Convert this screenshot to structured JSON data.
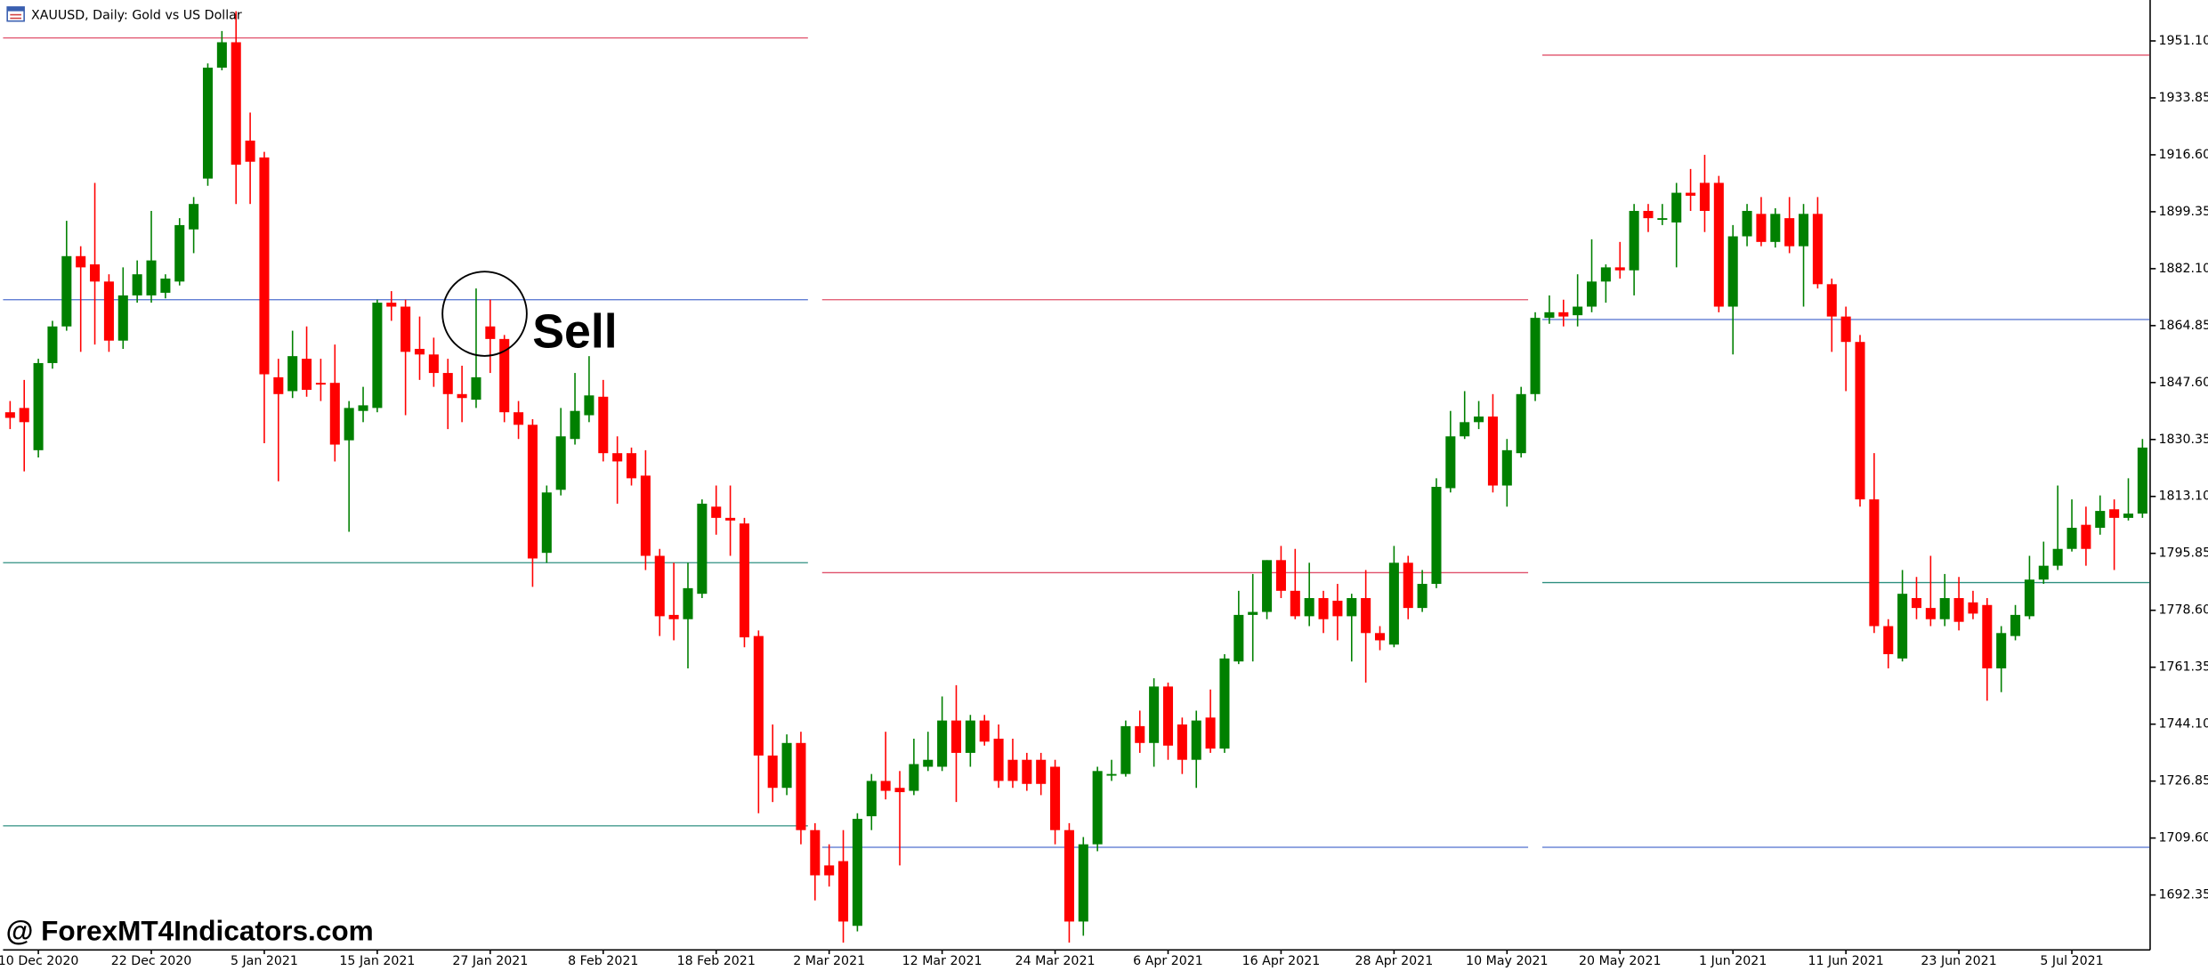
{
  "chart_data": {
    "type": "candlestick",
    "title": "XAUUSD, Daily:  Gold vs US Dollar",
    "watermark": "@ ForexMT4Indicators.com",
    "annotations": [
      {
        "text": "Sell",
        "index": 34
      }
    ],
    "up_color": "#008000",
    "down_color": "#ff0000",
    "ylim": [
      1675.7,
      1963.5
    ],
    "yticks": [
      {
        "value": 1951.1,
        "label": "1951.10"
      },
      {
        "value": 1933.85,
        "label": "1933.85"
      },
      {
        "value": 1916.6,
        "label": "1916.60"
      },
      {
        "value": 1899.35,
        "label": "1899.35"
      },
      {
        "value": 1882.1,
        "label": "1882.10"
      },
      {
        "value": 1864.85,
        "label": "1864.85"
      },
      {
        "value": 1847.6,
        "label": "1847.60"
      },
      {
        "value": 1830.35,
        "label": "1830.35"
      },
      {
        "value": 1813.1,
        "label": "1813.10"
      },
      {
        "value": 1795.85,
        "label": "1795.85"
      },
      {
        "value": 1778.6,
        "label": "1778.60"
      },
      {
        "value": 1761.35,
        "label": "1761.35"
      },
      {
        "value": 1744.1,
        "label": "1744.10"
      },
      {
        "value": 1726.85,
        "label": "1726.85"
      },
      {
        "value": 1709.6,
        "label": "1709.60"
      },
      {
        "value": 1692.35,
        "label": "1692.35"
      }
    ],
    "categories": [
      null,
      null,
      "10 Dec 2020",
      null,
      null,
      null,
      null,
      null,
      null,
      null,
      "22 Dec 2020",
      null,
      null,
      null,
      null,
      null,
      null,
      null,
      "5 Jan 2021",
      null,
      null,
      null,
      null,
      null,
      null,
      null,
      "15 Jan 2021",
      null,
      null,
      null,
      null,
      null,
      null,
      null,
      "27 Jan 2021",
      null,
      null,
      null,
      null,
      null,
      null,
      null,
      "8 Feb 2021",
      null,
      null,
      null,
      null,
      null,
      null,
      null,
      "18 Feb 2021",
      null,
      null,
      null,
      null,
      null,
      null,
      null,
      "2 Mar 2021",
      null,
      null,
      null,
      null,
      null,
      null,
      null,
      "12 Mar 2021",
      null,
      null,
      null,
      null,
      null,
      null,
      null,
      "24 Mar 2021",
      null,
      null,
      null,
      null,
      null,
      null,
      null,
      "6 Apr 2021",
      null,
      null,
      null,
      null,
      null,
      null,
      null,
      "16 Apr 2021",
      null,
      null,
      null,
      null,
      null,
      null,
      null,
      "28 Apr 2021",
      null,
      null,
      null,
      null,
      null,
      null,
      null,
      "10 May 2021",
      null,
      null,
      null,
      null,
      null,
      null,
      null,
      "20 May 2021",
      null,
      null,
      null,
      null,
      null,
      null,
      null,
      "1 Jun 2021",
      null,
      null,
      null,
      null,
      null,
      null,
      null,
      "11 Jun 2021",
      null,
      null,
      null,
      null,
      null,
      null,
      null,
      "23 Jun 2021",
      null,
      null,
      null,
      null,
      null,
      null,
      null,
      "5 Jul 2021",
      null,
      null,
      null,
      null,
      null
    ],
    "open": [
      1838.6,
      1839.9,
      1827.1,
      1853.5,
      1864.6,
      1885.9,
      1883.4,
      1878.2,
      1860.3,
      1874.0,
      1874.0,
      1874.8,
      1878.2,
      1894.0,
      1909.4,
      1943.0,
      1950.7,
      1920.9,
      1915.8,
      1849.2,
      1845.0,
      1854.8,
      1847.5,
      1847.5,
      1830.1,
      1839.0,
      1839.9,
      1871.8,
      1870.6,
      1857.8,
      1856.1,
      1850.5,
      1844.1,
      1842.4,
      1864.6,
      1860.8,
      1838.6,
      1834.8,
      1796.0,
      1815.1,
      1830.5,
      1837.7,
      1843.3,
      1826.2,
      1826.2,
      1819.4,
      1795.1,
      1777.2,
      1775.9,
      1783.6,
      1810.0,
      1806.6,
      1804.9,
      1770.8,
      1734.6,
      1724.8,
      1738.4,
      1712.0,
      1701.3,
      1702.6,
      1683.0,
      1716.2,
      1726.9,
      1724.8,
      1723.9,
      1731.2,
      1731.2,
      1745.2,
      1735.4,
      1745.2,
      1739.7,
      1733.3,
      1733.3,
      1733.3,
      1731.2,
      1712.0,
      1684.3,
      1707.7,
      1729.0,
      1729.0,
      1743.5,
      1738.4,
      1755.5,
      1744.0,
      1733.3,
      1746.1,
      1736.7,
      1763.1,
      1777.2,
      1778.1,
      1793.8,
      1784.5,
      1776.8,
      1782.3,
      1781.5,
      1776.8,
      1782.3,
      1771.7,
      1768.2,
      1793.0,
      1779.3,
      1786.6,
      1815.6,
      1831.3,
      1835.6,
      1837.3,
      1816.4,
      1826.2,
      1844.1,
      1867.2,
      1868.9,
      1868.0,
      1870.6,
      1878.2,
      1882.5,
      1881.6,
      1899.6,
      1897.4,
      1896.1,
      1905.1,
      1908.1,
      1908.1,
      1870.6,
      1891.9,
      1898.7,
      1890.2,
      1897.4,
      1888.9,
      1898.7,
      1877.4,
      1867.6,
      1859.9,
      1812.2,
      1773.8,
      1764.0,
      1782.3,
      1779.3,
      1775.9,
      1782.3,
      1781.0,
      1780.2,
      1761.0,
      1770.8,
      1776.8,
      1787.9,
      1792.1,
      1797.2,
      1804.5,
      1803.6,
      1809.2,
      1806.6,
      1807.9
    ],
    "high": [
      1842.0,
      1848.4,
      1854.8,
      1866.3,
      1896.6,
      1888.9,
      1908.1,
      1880.4,
      1882.5,
      1884.6,
      1899.6,
      1880.4,
      1897.4,
      1903.8,
      1944.3,
      1954.1,
      1960.1,
      1929.4,
      1917.5,
      1854.8,
      1863.3,
      1864.6,
      1854.8,
      1859.1,
      1842.0,
      1846.3,
      1872.7,
      1875.3,
      1872.7,
      1867.6,
      1861.2,
      1854.8,
      1852.7,
      1876.1,
      1872.7,
      1862.0,
      1842.0,
      1836.5,
      1816.4,
      1839.9,
      1850.5,
      1855.6,
      1848.4,
      1831.3,
      1827.9,
      1827.1,
      1797.2,
      1793.0,
      1793.0,
      1812.2,
      1816.4,
      1816.4,
      1806.6,
      1772.5,
      1744.0,
      1741.0,
      1741.8,
      1714.1,
      1707.7,
      1712.0,
      1717.1,
      1729.0,
      1741.8,
      1729.9,
      1739.7,
      1741.8,
      1752.5,
      1755.9,
      1746.9,
      1746.9,
      1744.0,
      1739.7,
      1735.4,
      1735.4,
      1733.3,
      1714.1,
      1709.9,
      1731.2,
      1733.3,
      1745.2,
      1748.2,
      1758.0,
      1756.7,
      1746.1,
      1748.2,
      1754.6,
      1765.3,
      1784.5,
      1789.6,
      1793.8,
      1798.1,
      1797.2,
      1793.0,
      1784.5,
      1786.6,
      1783.6,
      1790.8,
      1773.8,
      1798.1,
      1795.1,
      1790.8,
      1818.6,
      1839.0,
      1845.0,
      1842.0,
      1844.1,
      1830.5,
      1846.3,
      1868.9,
      1874.0,
      1872.7,
      1880.4,
      1891.0,
      1883.4,
      1890.2,
      1901.7,
      1901.7,
      1901.7,
      1908.1,
      1912.3,
      1916.6,
      1910.2,
      1895.3,
      1901.7,
      1903.8,
      1900.4,
      1903.8,
      1901.7,
      1903.8,
      1879.1,
      1870.6,
      1862.0,
      1826.2,
      1775.9,
      1790.8,
      1788.7,
      1795.1,
      1789.6,
      1788.7,
      1784.5,
      1782.3,
      1773.8,
      1780.2,
      1795.1,
      1799.4,
      1816.4,
      1812.2,
      1810.0,
      1813.4,
      1812.2,
      1818.6,
      1830.5
    ],
    "low": [
      1833.5,
      1820.7,
      1824.9,
      1851.8,
      1863.3,
      1856.9,
      1859.1,
      1856.9,
      1857.8,
      1871.8,
      1871.8,
      1873.1,
      1877.0,
      1886.8,
      1907.2,
      1942.2,
      1901.7,
      1901.7,
      1829.2,
      1817.7,
      1842.9,
      1843.3,
      1842.0,
      1823.7,
      1802.4,
      1835.6,
      1838.6,
      1866.3,
      1837.7,
      1848.4,
      1846.3,
      1833.5,
      1835.6,
      1839.9,
      1850.5,
      1835.6,
      1830.5,
      1785.7,
      1793.0,
      1813.4,
      1828.8,
      1835.6,
      1823.7,
      1810.9,
      1816.4,
      1790.8,
      1770.8,
      1769.5,
      1761.0,
      1782.3,
      1801.5,
      1795.1,
      1767.4,
      1717.1,
      1720.5,
      1722.6,
      1707.7,
      1690.7,
      1694.9,
      1677.9,
      1681.3,
      1712.0,
      1721.3,
      1701.3,
      1722.6,
      1729.9,
      1729.9,
      1720.5,
      1731.2,
      1737.6,
      1724.8,
      1724.8,
      1723.9,
      1722.6,
      1707.7,
      1677.9,
      1680.0,
      1705.6,
      1726.9,
      1728.2,
      1735.4,
      1731.2,
      1733.3,
      1729.0,
      1724.8,
      1735.4,
      1735.4,
      1762.3,
      1763.1,
      1775.9,
      1782.3,
      1775.9,
      1773.8,
      1771.7,
      1769.5,
      1763.1,
      1756.7,
      1766.5,
      1767.4,
      1775.9,
      1778.1,
      1785.3,
      1814.3,
      1830.5,
      1833.5,
      1814.3,
      1810.0,
      1824.9,
      1842.0,
      1865.4,
      1864.6,
      1864.6,
      1868.9,
      1871.8,
      1879.1,
      1874.0,
      1893.2,
      1895.3,
      1882.5,
      1899.6,
      1893.2,
      1868.9,
      1856.1,
      1888.9,
      1888.9,
      1888.5,
      1886.8,
      1870.6,
      1876.1,
      1856.9,
      1845.0,
      1810.0,
      1771.7,
      1761.0,
      1763.1,
      1775.9,
      1773.8,
      1773.8,
      1772.5,
      1775.9,
      1751.2,
      1753.8,
      1769.5,
      1775.9,
      1786.6,
      1790.8,
      1796.4,
      1792.1,
      1801.5,
      1790.8,
      1805.8,
      1806.6
    ],
    "close": [
      1836.9,
      1835.6,
      1853.5,
      1864.6,
      1885.9,
      1882.5,
      1878.2,
      1860.3,
      1874.0,
      1880.4,
      1884.6,
      1879.1,
      1895.3,
      1901.7,
      1943.0,
      1950.7,
      1913.6,
      1914.5,
      1850.1,
      1844.1,
      1855.6,
      1845.4,
      1847.1,
      1828.8,
      1839.9,
      1840.7,
      1871.8,
      1870.6,
      1856.9,
      1856.1,
      1850.5,
      1844.1,
      1842.9,
      1849.2,
      1860.8,
      1838.6,
      1834.8,
      1794.3,
      1814.3,
      1831.3,
      1839.0,
      1843.7,
      1826.2,
      1823.7,
      1818.6,
      1795.1,
      1776.8,
      1775.9,
      1785.3,
      1810.9,
      1806.6,
      1805.8,
      1770.4,
      1734.6,
      1724.8,
      1738.4,
      1712.0,
      1698.3,
      1698.3,
      1684.3,
      1715.4,
      1726.9,
      1723.9,
      1723.5,
      1732.0,
      1733.3,
      1745.2,
      1735.4,
      1745.2,
      1738.8,
      1726.9,
      1726.9,
      1726.0,
      1726.0,
      1712.0,
      1684.3,
      1707.7,
      1729.9,
      1729.0,
      1743.5,
      1738.4,
      1755.5,
      1737.6,
      1733.3,
      1745.2,
      1736.7,
      1764.0,
      1777.2,
      1778.1,
      1793.8,
      1784.5,
      1776.8,
      1782.3,
      1775.9,
      1776.8,
      1782.3,
      1771.7,
      1769.5,
      1793.0,
      1779.3,
      1786.6,
      1816.0,
      1831.3,
      1835.6,
      1837.3,
      1816.4,
      1827.1,
      1844.1,
      1867.2,
      1868.9,
      1867.6,
      1870.6,
      1878.2,
      1882.5,
      1881.6,
      1899.6,
      1897.4,
      1897.4,
      1905.1,
      1904.2,
      1899.6,
      1870.6,
      1891.9,
      1899.6,
      1890.2,
      1898.7,
      1888.9,
      1898.7,
      1877.4,
      1867.6,
      1859.9,
      1812.2,
      1773.8,
      1765.3,
      1783.6,
      1779.3,
      1775.9,
      1782.3,
      1775.1,
      1777.6,
      1761.0,
      1771.7,
      1777.2,
      1787.9,
      1792.1,
      1797.2,
      1803.6,
      1797.2,
      1808.7,
      1806.6,
      1807.9,
      1827.9
    ],
    "levels": [
      {
        "value": 1952.0,
        "from": 0,
        "to": 56,
        "color": "#e0506a"
      },
      {
        "value": 1872.7,
        "from": 0,
        "to": 56,
        "color": "#4f6fcf"
      },
      {
        "value": 1793.0,
        "from": 0,
        "to": 56,
        "color": "#2f8f80"
      },
      {
        "value": 1713.3,
        "from": 0,
        "to": 56,
        "color": "#2f8f80"
      },
      {
        "value": 1872.7,
        "from": 58,
        "to": 107,
        "color": "#e0506a"
      },
      {
        "value": 1790.0,
        "from": 58,
        "to": 107,
        "color": "#e0506a"
      },
      {
        "value": 1706.8,
        "from": 58,
        "to": 107,
        "color": "#4f6fcf"
      },
      {
        "value": 1946.8,
        "from": 109,
        "to": 151,
        "color": "#e0506a"
      },
      {
        "value": 1866.7,
        "from": 109,
        "to": 151,
        "color": "#4f6fcf"
      },
      {
        "value": 1787.0,
        "from": 109,
        "to": 151,
        "color": "#2f8f80"
      },
      {
        "value": 1706.8,
        "from": 109,
        "to": 151,
        "color": "#4f6fcf"
      }
    ]
  }
}
